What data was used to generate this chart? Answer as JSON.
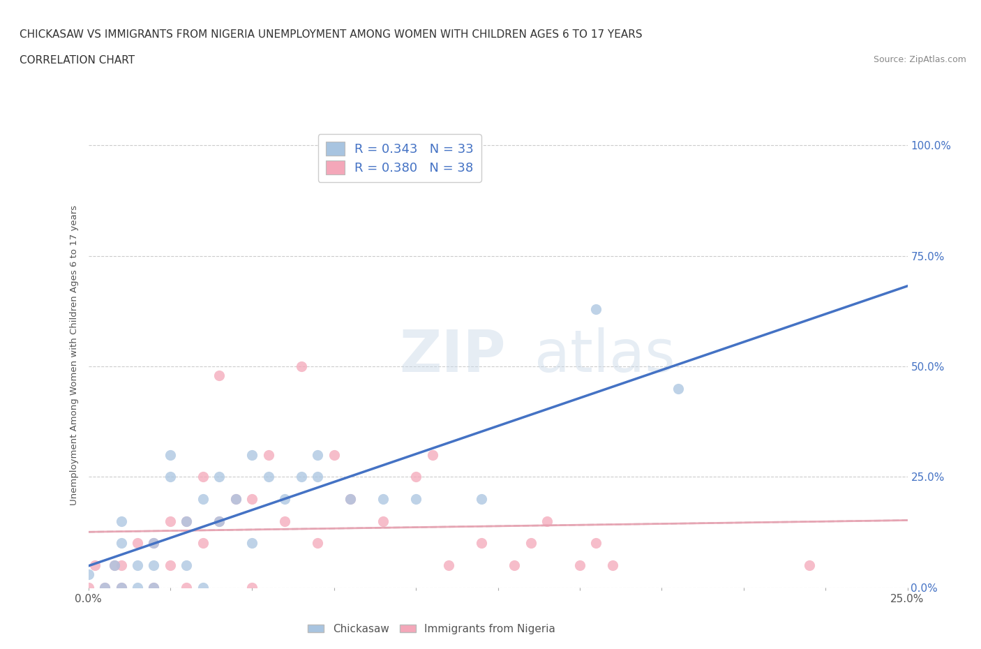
{
  "title_line1": "CHICKASAW VS IMMIGRANTS FROM NIGERIA UNEMPLOYMENT AMONG WOMEN WITH CHILDREN AGES 6 TO 17 YEARS",
  "title_line2": "CORRELATION CHART",
  "source_text": "Source: ZipAtlas.com",
  "watermark_part1": "ZIP",
  "watermark_part2": "atlas",
  "ylabel": "Unemployment Among Women with Children Ages 6 to 17 years",
  "xlim": [
    0.0,
    0.25
  ],
  "ylim": [
    0.0,
    1.05
  ],
  "ytick_labels": [
    "0.0%",
    "25.0%",
    "50.0%",
    "75.0%",
    "100.0%"
  ],
  "ytick_values": [
    0.0,
    0.25,
    0.5,
    0.75,
    1.0
  ],
  "xtick_labels": [
    "0.0%",
    "",
    "",
    "",
    "",
    "",
    "",
    "",
    "",
    "",
    "25.0%"
  ],
  "xtick_values": [
    0.0,
    0.025,
    0.05,
    0.075,
    0.1,
    0.125,
    0.15,
    0.175,
    0.2,
    0.225,
    0.25
  ],
  "chickasaw_color": "#a8c4e0",
  "nigeria_color": "#f4a7b9",
  "trend_line_color_chickasaw": "#4472c4",
  "trend_line_color_nigeria_solid": "#e8a0b0",
  "trend_line_color_nigeria_dashed": "#cccccc",
  "R_chickasaw": 0.343,
  "N_chickasaw": 33,
  "R_nigeria": 0.38,
  "N_nigeria": 38,
  "legend_label_1": "Chickasaw",
  "legend_label_2": "Immigrants from Nigeria",
  "background_color": "#ffffff",
  "grid_color": "#cccccc",
  "chickasaw_scatter_x": [
    0.0,
    0.005,
    0.008,
    0.01,
    0.01,
    0.01,
    0.015,
    0.015,
    0.02,
    0.02,
    0.02,
    0.025,
    0.025,
    0.03,
    0.03,
    0.035,
    0.035,
    0.04,
    0.04,
    0.045,
    0.05,
    0.05,
    0.055,
    0.06,
    0.065,
    0.07,
    0.07,
    0.08,
    0.09,
    0.1,
    0.12,
    0.155,
    0.18
  ],
  "chickasaw_scatter_y": [
    0.03,
    0.0,
    0.05,
    0.0,
    0.1,
    0.15,
    0.0,
    0.05,
    0.0,
    0.05,
    0.1,
    0.25,
    0.3,
    0.05,
    0.15,
    0.0,
    0.2,
    0.15,
    0.25,
    0.2,
    0.1,
    0.3,
    0.25,
    0.2,
    0.25,
    0.3,
    0.25,
    0.2,
    0.2,
    0.2,
    0.2,
    0.63,
    0.45
  ],
  "nigeria_scatter_x": [
    0.0,
    0.002,
    0.005,
    0.008,
    0.01,
    0.01,
    0.015,
    0.02,
    0.02,
    0.025,
    0.025,
    0.03,
    0.03,
    0.035,
    0.035,
    0.04,
    0.04,
    0.045,
    0.05,
    0.05,
    0.055,
    0.06,
    0.065,
    0.07,
    0.075,
    0.08,
    0.09,
    0.1,
    0.105,
    0.11,
    0.12,
    0.13,
    0.135,
    0.14,
    0.15,
    0.155,
    0.16,
    0.22
  ],
  "nigeria_scatter_y": [
    0.0,
    0.05,
    0.0,
    0.05,
    0.0,
    0.05,
    0.1,
    0.0,
    0.1,
    0.05,
    0.15,
    0.0,
    0.15,
    0.1,
    0.25,
    0.15,
    0.48,
    0.2,
    0.0,
    0.2,
    0.3,
    0.15,
    0.5,
    0.1,
    0.3,
    0.2,
    0.15,
    0.25,
    0.3,
    0.05,
    0.1,
    0.05,
    0.1,
    0.15,
    0.05,
    0.1,
    0.05,
    0.05
  ]
}
